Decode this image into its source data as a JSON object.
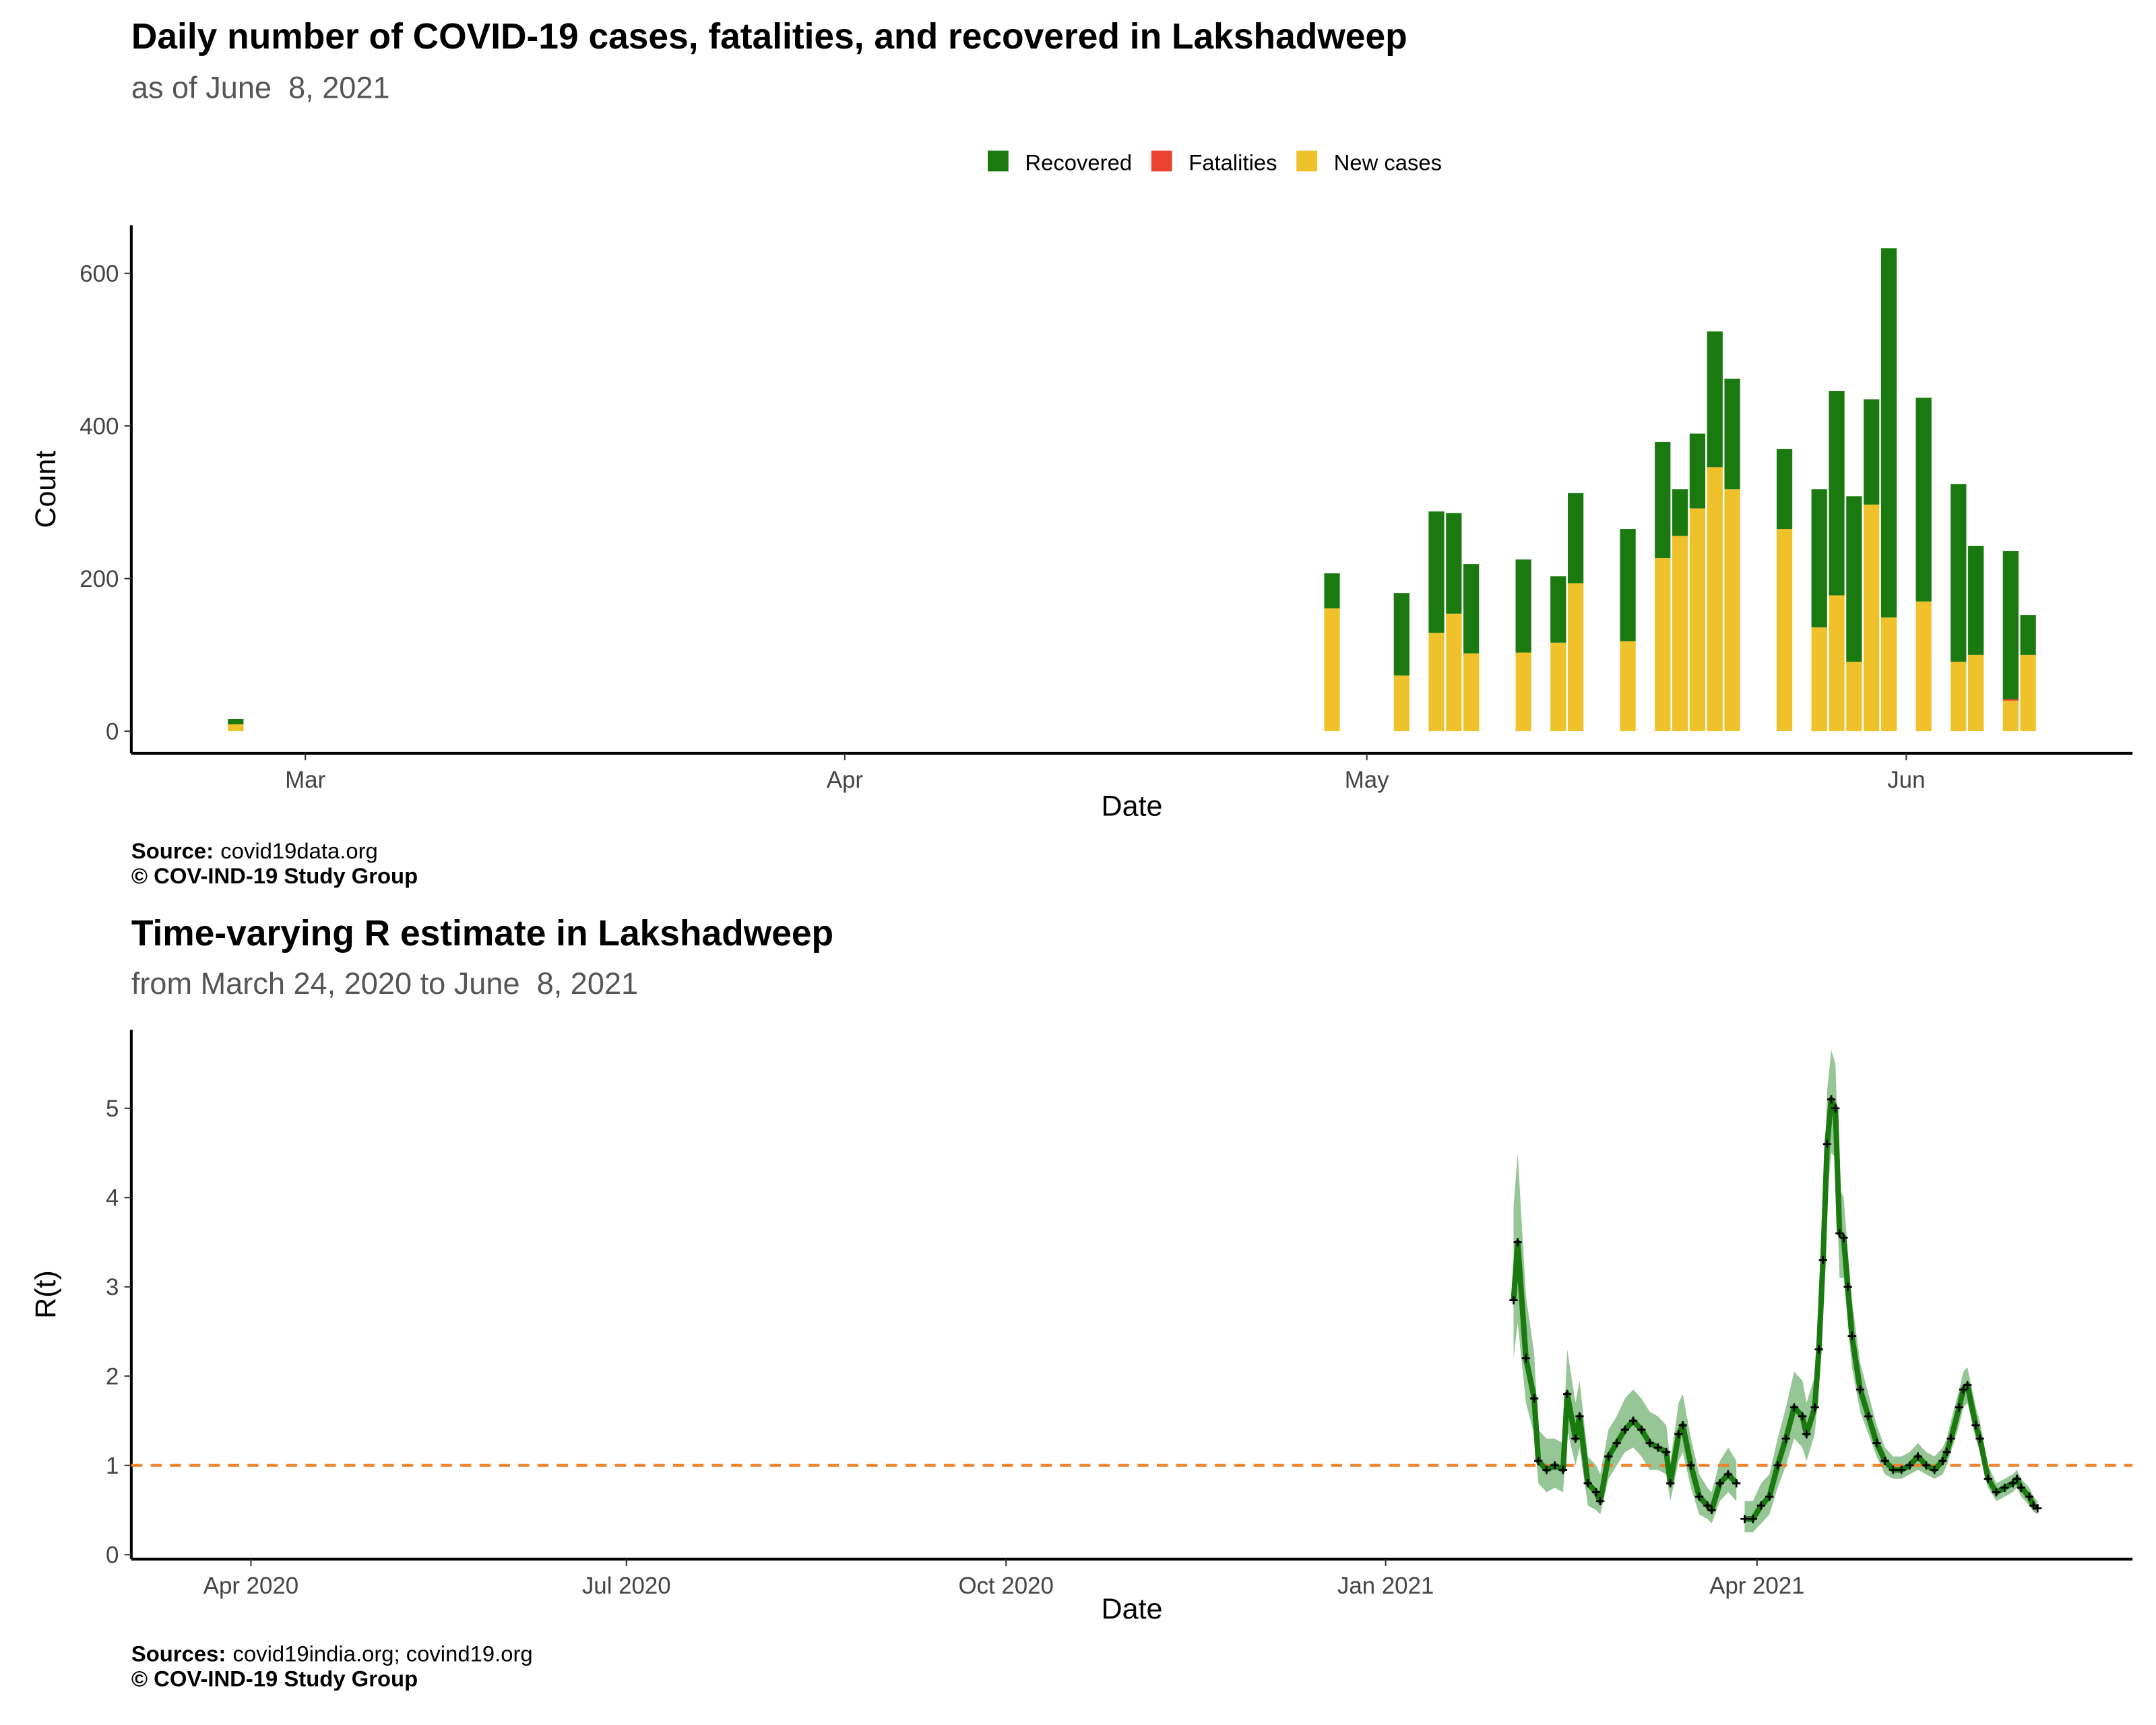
{
  "chart_data": [
    {
      "type": "bar",
      "stacked": true,
      "title": "Daily number of COVID-19 cases, fatalities, and recovered in Lakshadweep",
      "subtitle": "as of June  8, 2021",
      "x_label": "Date",
      "y_label": "Count",
      "x": [
        "2021-02-25",
        "2021-04-29",
        "2021-05-03",
        "2021-05-05",
        "2021-05-06",
        "2021-05-07",
        "2021-05-10",
        "2021-05-12",
        "2021-05-13",
        "2021-05-16",
        "2021-05-18",
        "2021-05-19",
        "2021-05-20",
        "2021-05-21",
        "2021-05-22",
        "2021-05-25",
        "2021-05-27",
        "2021-05-28",
        "2021-05-29",
        "2021-05-30",
        "2021-05-31",
        "2021-06-02",
        "2021-06-04",
        "2021-06-05",
        "2021-06-07",
        "2021-06-08"
      ],
      "series": [
        {
          "name": "Recovered",
          "color": "#1a7a0f",
          "values": [
            7,
            46,
            108,
            159,
            132,
            117,
            122,
            87,
            118,
            147,
            152,
            61,
            98,
            178,
            145,
            105,
            181,
            268,
            217,
            138,
            484,
            267,
            233,
            143,
            194,
            52
          ]
        },
        {
          "name": "Fatalities",
          "color": "#e8432e",
          "values": [
            0,
            0,
            0,
            0,
            0,
            0,
            0,
            0,
            0,
            0,
            0,
            0,
            0,
            0,
            0,
            0,
            0,
            0,
            0,
            0,
            0,
            0,
            0,
            0,
            2,
            0
          ]
        },
        {
          "name": "New cases",
          "color": "#efc12a",
          "values": [
            9,
            161,
            73,
            129,
            154,
            102,
            103,
            116,
            194,
            118,
            227,
            256,
            292,
            346,
            317,
            265,
            136,
            178,
            91,
            297,
            149,
            170,
            91,
            100,
            40,
            100
          ]
        }
      ],
      "xlim": [
        "2021-02-19",
        "2021-06-14"
      ],
      "xticks": [
        {
          "value": "2021-03-01",
          "label": "Mar"
        },
        {
          "value": "2021-04-01",
          "label": "Apr"
        },
        {
          "value": "2021-05-01",
          "label": "May"
        },
        {
          "value": "2021-06-01",
          "label": "Jun"
        }
      ],
      "ylim": [
        -29,
        663
      ],
      "yticks": [
        0,
        200,
        400,
        600
      ],
      "legend": "top",
      "caption": {
        "label": "Source:",
        "text": "covid19data.org"
      },
      "copyright": "© COV-IND-19 Study Group"
    },
    {
      "type": "line",
      "title": "Time-varying R estimate in Lakshadweep",
      "subtitle": "from March 24, 2020 to June  8, 2021",
      "x_label": "Date",
      "y_label": "R(t)",
      "x": [
        "2021-02-01",
        "2021-02-02",
        "2021-02-04",
        "2021-02-06",
        "2021-02-07",
        "2021-02-09",
        "2021-02-11",
        "2021-02-13",
        "2021-02-14",
        "2021-02-16",
        "2021-02-17",
        "2021-02-19",
        "2021-02-21",
        "2021-02-22",
        "2021-02-24",
        "2021-02-26",
        "2021-02-28",
        "2021-03-02",
        "2021-03-04",
        "2021-03-06",
        "2021-03-08",
        "2021-03-10",
        "2021-03-11",
        "2021-03-13",
        "2021-03-14",
        "2021-03-16",
        "2021-03-18",
        "2021-03-20",
        "2021-03-21",
        "2021-03-23",
        "2021-03-25",
        "2021-03-27",
        "2021-03-28",
        "2021-03-29",
        "2021-03-31",
        "2021-04-02",
        "2021-04-04",
        "2021-04-06",
        "2021-04-08",
        "2021-04-10",
        "2021-04-12",
        "2021-04-13",
        "2021-04-15",
        "2021-04-16",
        "2021-04-17",
        "2021-04-18",
        "2021-04-19",
        "2021-04-20",
        "2021-04-21",
        "2021-04-22",
        "2021-04-23",
        "2021-04-24",
        "2021-04-26",
        "2021-04-28",
        "2021-04-30",
        "2021-05-02",
        "2021-05-04",
        "2021-05-06",
        "2021-05-08",
        "2021-05-10",
        "2021-05-12",
        "2021-05-14",
        "2021-05-16",
        "2021-05-17",
        "2021-05-18",
        "2021-05-20",
        "2021-05-21",
        "2021-05-22",
        "2021-05-24",
        "2021-05-25",
        "2021-05-27",
        "2021-05-29",
        "2021-05-31",
        "2021-06-02",
        "2021-06-03",
        "2021-06-04",
        "2021-06-06",
        "2021-06-07",
        "2021-06-08"
      ],
      "values": [
        2.85,
        3.5,
        2.2,
        1.75,
        1.05,
        0.95,
        1.0,
        0.95,
        1.8,
        1.3,
        1.55,
        0.8,
        0.7,
        0.6,
        1.1,
        1.25,
        1.4,
        1.5,
        1.4,
        1.25,
        1.2,
        1.15,
        0.8,
        1.35,
        1.45,
        1.0,
        0.65,
        0.55,
        0.5,
        0.8,
        0.9,
        0.8,
        null,
        0.4,
        0.4,
        0.55,
        0.65,
        1.0,
        1.3,
        1.65,
        1.55,
        1.35,
        1.65,
        2.3,
        3.3,
        4.6,
        5.1,
        5.0,
        3.6,
        3.55,
        3.0,
        2.45,
        1.85,
        1.55,
        1.25,
        1.05,
        0.95,
        0.95,
        1.0,
        1.1,
        1.0,
        0.95,
        1.05,
        1.15,
        1.3,
        1.65,
        1.85,
        1.9,
        1.45,
        1.3,
        0.85,
        0.7,
        0.75,
        0.8,
        0.85,
        0.75,
        0.65,
        0.55,
        0.52
      ],
      "lower": [
        2.2,
        2.6,
        1.7,
        1.35,
        0.8,
        0.7,
        0.75,
        0.7,
        1.4,
        1.0,
        1.2,
        0.55,
        0.5,
        0.45,
        0.85,
        1.0,
        1.15,
        1.2,
        1.1,
        0.95,
        0.95,
        0.9,
        0.6,
        1.05,
        1.15,
        0.75,
        0.45,
        0.4,
        0.35,
        0.6,
        0.7,
        0.6,
        null,
        0.25,
        0.25,
        0.35,
        0.45,
        0.75,
        1.0,
        1.3,
        1.2,
        1.05,
        1.35,
        1.9,
        2.8,
        4.0,
        4.5,
        4.45,
        3.1,
        3.1,
        2.6,
        2.1,
        1.6,
        1.35,
        1.1,
        0.9,
        0.85,
        0.85,
        0.9,
        0.95,
        0.9,
        0.85,
        0.9,
        1.0,
        1.15,
        1.45,
        1.65,
        1.7,
        1.3,
        1.15,
        0.75,
        0.6,
        0.65,
        0.7,
        0.75,
        0.65,
        0.55,
        0.48,
        0.45
      ],
      "upper": [
        3.9,
        4.5,
        2.9,
        2.25,
        1.4,
        1.3,
        1.3,
        1.25,
        2.3,
        1.7,
        1.95,
        1.1,
        1.0,
        0.9,
        1.4,
        1.55,
        1.75,
        1.85,
        1.75,
        1.6,
        1.55,
        1.45,
        1.05,
        1.7,
        1.8,
        1.3,
        0.9,
        0.75,
        0.7,
        1.05,
        1.2,
        1.05,
        null,
        0.6,
        0.6,
        0.8,
        0.9,
        1.3,
        1.65,
        2.05,
        1.95,
        1.7,
        2.0,
        2.75,
        3.8,
        5.2,
        5.65,
        5.5,
        4.1,
        4.0,
        3.4,
        2.85,
        2.15,
        1.8,
        1.45,
        1.2,
        1.1,
        1.1,
        1.15,
        1.25,
        1.15,
        1.1,
        1.2,
        1.3,
        1.5,
        1.85,
        2.05,
        2.1,
        1.65,
        1.5,
        1.0,
        0.8,
        0.85,
        0.9,
        0.95,
        0.85,
        0.75,
        0.65,
        0.6
      ],
      "color": "#1a7a0f",
      "band_color": "#2e8b2e",
      "marker_color": "#000000",
      "reference_line": 1,
      "reference_color": "#f0822a",
      "xlim": [
        "2020-03-03",
        "2021-07-01"
      ],
      "xticks": [
        {
          "value": "2020-04-01",
          "label": "Apr 2020"
        },
        {
          "value": "2020-07-01",
          "label": "Jul 2020"
        },
        {
          "value": "2020-10-01",
          "label": "Oct 2020"
        },
        {
          "value": "2021-01-01",
          "label": "Jan 2021"
        },
        {
          "value": "2021-04-01",
          "label": "Apr 2021"
        }
      ],
      "ylim": [
        -0.05,
        5.88
      ],
      "yticks": [
        0,
        1,
        2,
        3,
        4,
        5
      ],
      "caption": {
        "label": "Sources:",
        "text": "covid19india.org; covind19.org"
      },
      "copyright": "© COV-IND-19 Study Group"
    }
  ]
}
